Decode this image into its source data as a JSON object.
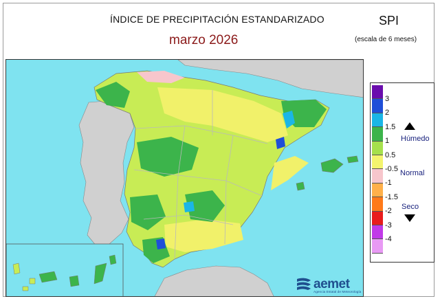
{
  "header": {
    "title": "ÍNDICE DE PRECIPITACIÓN ESTANDARIZADO",
    "subtitle": "marzo  2026",
    "index_name": "SPI",
    "scale_note": "(escala de 6 meses)"
  },
  "legend": {
    "colors": [
      "#6a0dad",
      "#1f4fd8",
      "#1ab6e6",
      "#3cb44b",
      "#a6e04c",
      "#f4f46e",
      "#f7c6cc",
      "#ffb04a",
      "#ff7a1a",
      "#e81c1c",
      "#c13ae8",
      "#e89af4"
    ],
    "ticks": [
      "3",
      "2",
      "1.5",
      "1",
      "0.5",
      "-0.5",
      "-1",
      "-1.5",
      "-2",
      "-3",
      "-4"
    ],
    "wet_label": "Húmedo",
    "normal_label": "Normal",
    "dry_label": "Seco"
  },
  "map": {
    "sea_color": "#7fe3f0",
    "land_outside_color": "#d0d0d0"
  },
  "logo": {
    "brand": "aemet",
    "agency": "Agencia Estatal de Meteorología"
  }
}
